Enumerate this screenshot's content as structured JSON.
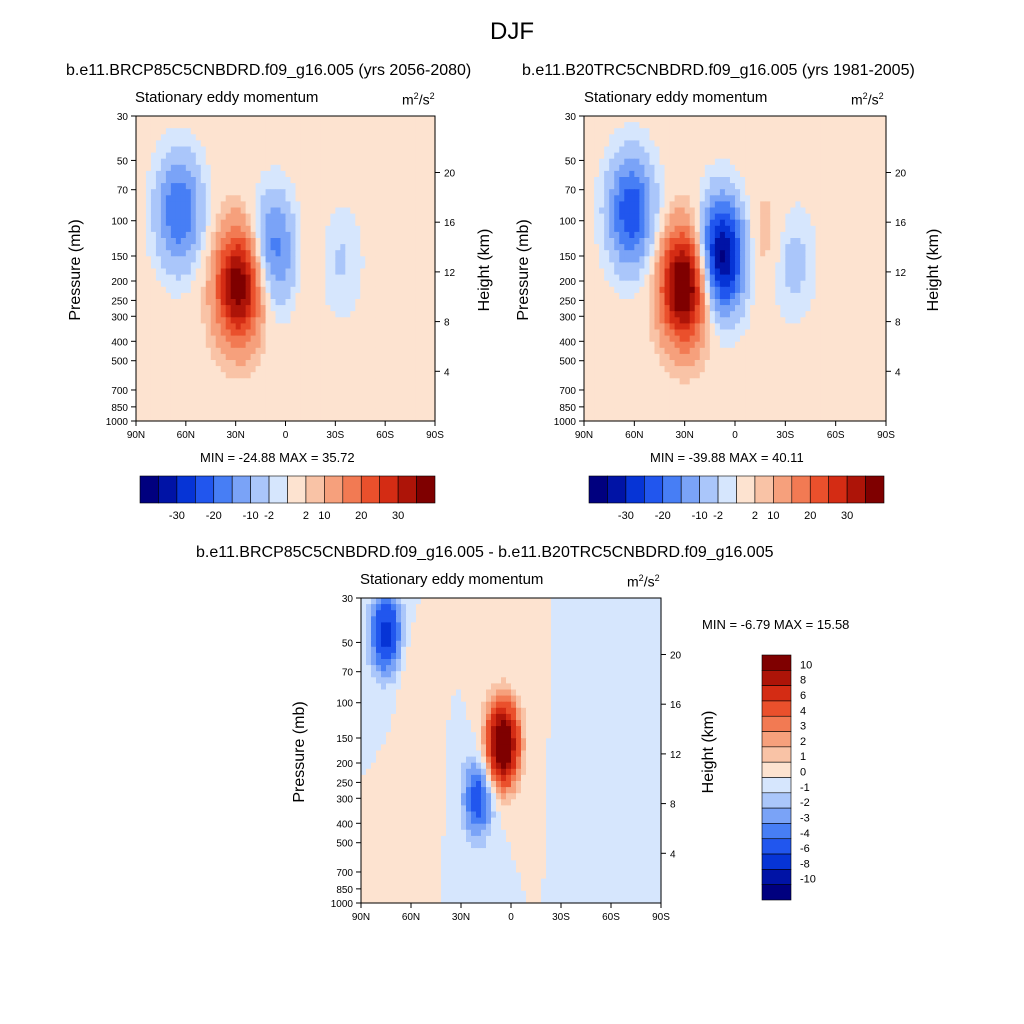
{
  "figure_title": "DJF",
  "panels": [
    {
      "title": "b.e11.BRCP85C5CNBDRD.f09_g16.005 (yrs 2056-2080)",
      "subtitle": "Stationary eddy momentum",
      "units_base": "m",
      "units_sup1": "2",
      "units_mid": "/s",
      "units_sup2": "2",
      "ylabel": "Pressure (mb)",
      "ylabel_right": "Height (km)",
      "minmax": "MIN = -24.88  MAX =  35.72"
    },
    {
      "title": "b.e11.B20TRC5CNBDRD.f09_g16.005 (yrs 1981-2005)",
      "subtitle": "Stationary eddy momentum",
      "units_base": "m",
      "units_sup1": "2",
      "units_mid": "/s",
      "units_sup2": "2",
      "ylabel": "Pressure (mb)",
      "ylabel_right": "Height (km)",
      "minmax": "MIN = -39.88  MAX =  40.11"
    },
    {
      "title": "b.e11.BRCP85C5CNBDRD.f09_g16.005 - b.e11.B20TRC5CNBDRD.f09_g16.005",
      "subtitle": "Stationary eddy momentum",
      "units_base": "m",
      "units_sup1": "2",
      "units_mid": "/s",
      "units_sup2": "2",
      "ylabel": "Pressure (mb)",
      "ylabel_right": "Height (km)",
      "minmax": "MIN =  -6.79  MAX =  15.58"
    }
  ],
  "chart_data": [
    {
      "type": "heatmap",
      "title": "b.e11.BRCP85C5CNBDRD.f09_g16.005 (yrs 2056-2080)",
      "subtitle": "Stationary eddy momentum",
      "units": "m2/s2",
      "ylabel": "Pressure (mb)",
      "ylabel_right": "Height (km)",
      "x_ticks": [
        "90N",
        "60N",
        "30N",
        "0",
        "30S",
        "60S",
        "90S"
      ],
      "x_values": [
        90,
        60,
        30,
        0,
        -30,
        -60,
        -90
      ],
      "y_ticks": [
        30,
        50,
        70,
        100,
        150,
        200,
        250,
        300,
        400,
        500,
        700,
        850,
        1000
      ],
      "y_scale": "log",
      "ylim": [
        1000,
        30
      ],
      "y_right_ticks": [
        4,
        8,
        12,
        16,
        20
      ],
      "colorbar_labels": [
        "-30",
        "-20",
        "-10",
        "-2",
        "2",
        "10",
        "20",
        "30"
      ],
      "colorbar_orientation": "horizontal",
      "min": -24.88,
      "max": 35.72,
      "features": [
        {
          "lat": 64,
          "p": 90,
          "value": -20
        },
        {
          "lat": 28,
          "p": 210,
          "value": 35
        },
        {
          "lat": 7,
          "p": 140,
          "value": -18
        },
        {
          "lat": -15,
          "p": 150,
          "value": 3
        },
        {
          "lat": -32,
          "p": 160,
          "value": -6
        }
      ]
    },
    {
      "type": "heatmap",
      "title": "b.e11.B20TRC5CNBDRD.f09_g16.005 (yrs 1981-2005)",
      "subtitle": "Stationary eddy momentum",
      "units": "m2/s2",
      "ylabel": "Pressure (mb)",
      "ylabel_right": "Height (km)",
      "x_ticks": [
        "90N",
        "60N",
        "30N",
        "0",
        "30S",
        "60S",
        "90S"
      ],
      "x_values": [
        90,
        60,
        30,
        0,
        -30,
        -60,
        -90
      ],
      "y_ticks": [
        30,
        50,
        70,
        100,
        150,
        200,
        250,
        300,
        400,
        500,
        700,
        850,
        1000
      ],
      "y_scale": "log",
      "ylim": [
        1000,
        30
      ],
      "y_right_ticks": [
        4,
        8,
        12,
        16,
        20
      ],
      "colorbar_labels": [
        "-30",
        "-20",
        "-10",
        "-2",
        "2",
        "10",
        "20",
        "30"
      ],
      "colorbar_orientation": "horizontal",
      "min": -39.88,
      "max": 40.11,
      "features": [
        {
          "lat": 62,
          "p": 90,
          "value": -24
        },
        {
          "lat": 30,
          "p": 210,
          "value": 40
        },
        {
          "lat": 8,
          "p": 150,
          "value": -38
        },
        {
          "lat": -18,
          "p": 130,
          "value": 6
        },
        {
          "lat": -33,
          "p": 160,
          "value": -8
        }
      ]
    },
    {
      "type": "heatmap",
      "title": "b.e11.BRCP85C5CNBDRD.f09_g16.005 - b.e11.B20TRC5CNBDRD.f09_g16.005",
      "subtitle": "Stationary eddy momentum",
      "units": "m2/s2",
      "ylabel": "Pressure (mb)",
      "ylabel_right": "Height (km)",
      "x_ticks": [
        "90N",
        "60N",
        "30N",
        "0",
        "30S",
        "60S",
        "90S"
      ],
      "x_values": [
        90,
        60,
        30,
        0,
        -30,
        -60,
        -90
      ],
      "y_ticks": [
        30,
        50,
        70,
        100,
        150,
        200,
        250,
        300,
        400,
        500,
        700,
        850,
        1000
      ],
      "y_scale": "log",
      "ylim": [
        1000,
        30
      ],
      "y_right_ticks": [
        4,
        8,
        12,
        16,
        20
      ],
      "colorbar_labels": [
        "10",
        "8",
        "6",
        "4",
        "3",
        "2",
        "1",
        "0",
        "-1",
        "-2",
        "-3",
        "-4",
        "-6",
        "-8",
        "-10"
      ],
      "colorbar_orientation": "vertical",
      "min": -6.79,
      "max": 15.58,
      "features": [
        {
          "lat": 75,
          "p": 45,
          "value": -7
        },
        {
          "lat": 5,
          "p": 160,
          "value": 14
        },
        {
          "lat": 20,
          "p": 300,
          "value": -5
        },
        {
          "lat": 60,
          "p": 70,
          "value": 1
        },
        {
          "lat": 55,
          "p": 250,
          "value": 1
        },
        {
          "lat": -45,
          "p": 200,
          "value": -1
        }
      ]
    }
  ],
  "colors": {
    "scale_ramp": [
      "#00007f",
      "#0013a6",
      "#0634d6",
      "#2156ee",
      "#477ef5",
      "#7aa3f7",
      "#aac6fa",
      "#d6e6fd",
      "#fde3d0",
      "#f9c3a6",
      "#f6a07c",
      "#f27a53",
      "#ea502c",
      "#d42c14",
      "#ad1408",
      "#7f0000"
    ],
    "diff_ramp": [
      "#00007f",
      "#0013a6",
      "#0634d6",
      "#2156ee",
      "#477ef5",
      "#7aa3f7",
      "#aac6fa",
      "#d6e6fd",
      "#fde3d0",
      "#f9c3a6",
      "#f6a07c",
      "#f27a53",
      "#ea502c",
      "#d42c14",
      "#ad1408",
      "#7f0000"
    ]
  }
}
